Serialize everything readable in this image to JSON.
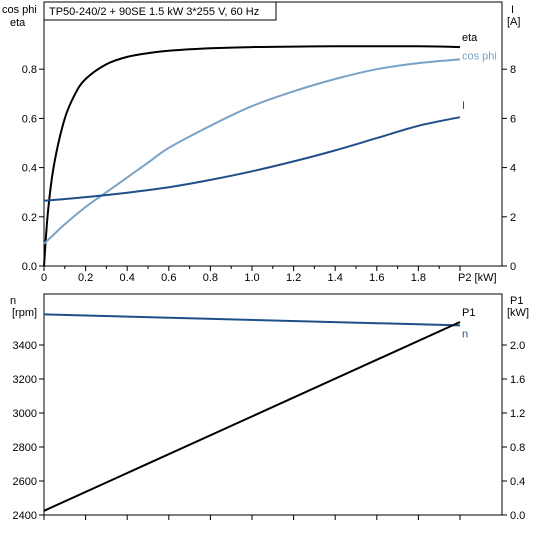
{
  "title": "TP50-240/2 + 90SE   1.5 kW   3*255 V, 60 Hz",
  "colors": {
    "eta": "#000000",
    "cos_phi": "#7aa2c6",
    "current": "#1f4f8a",
    "n": "#1f4f8a",
    "p1": "#000000",
    "axis": "#000000"
  },
  "chart_data": [
    {
      "type": "line",
      "x_axis": {
        "label": "P2 [kW]",
        "range": [
          0,
          2.0
        ],
        "ticks": [
          "0",
          "0.2",
          "0.4",
          "0.6",
          "0.8",
          "1.0",
          "1.2",
          "1.4",
          "1.6",
          "1.8",
          "P2 [kW]"
        ]
      },
      "y_left": {
        "label_line1": "cos phi",
        "label_line2": "eta",
        "range": [
          0,
          1.0
        ],
        "ticks": [
          "0.0",
          "0.2",
          "0.4",
          "0.6",
          "0.8"
        ]
      },
      "y_right": {
        "label_line1": "I",
        "label_line2": "[A]",
        "range": [
          0,
          10
        ],
        "ticks": [
          "0",
          "2",
          "4",
          "6",
          "8"
        ]
      },
      "series": [
        {
          "name": "eta",
          "axis": "left",
          "x": [
            0.0,
            0.02,
            0.05,
            0.1,
            0.15,
            0.2,
            0.3,
            0.4,
            0.5,
            0.6,
            0.8,
            1.0,
            1.2,
            1.4,
            1.6,
            1.8,
            2.0
          ],
          "y": [
            0.0,
            0.23,
            0.42,
            0.6,
            0.7,
            0.76,
            0.82,
            0.85,
            0.865,
            0.875,
            0.885,
            0.89,
            0.892,
            0.893,
            0.893,
            0.893,
            0.89
          ]
        },
        {
          "name": "cos phi",
          "axis": "left",
          "x": [
            0.0,
            0.05,
            0.1,
            0.2,
            0.3,
            0.4,
            0.5,
            0.6,
            0.8,
            1.0,
            1.2,
            1.4,
            1.6,
            1.8,
            2.0
          ],
          "y": [
            0.09,
            0.13,
            0.17,
            0.24,
            0.3,
            0.36,
            0.42,
            0.48,
            0.57,
            0.65,
            0.71,
            0.76,
            0.8,
            0.825,
            0.84
          ]
        },
        {
          "name": "I",
          "axis": "right",
          "x": [
            0.0,
            0.2,
            0.4,
            0.6,
            0.8,
            1.0,
            1.2,
            1.4,
            1.6,
            1.8,
            2.0
          ],
          "y": [
            2.65,
            2.8,
            2.98,
            3.2,
            3.5,
            3.85,
            4.25,
            4.7,
            5.2,
            5.7,
            6.05
          ]
        }
      ]
    },
    {
      "type": "line",
      "x_axis": {
        "range": [
          0,
          2.0
        ]
      },
      "y_left": {
        "label_line1": "n",
        "label_line2": "[rpm]",
        "range": [
          2400,
          3600
        ],
        "ticks": [
          "2400",
          "2600",
          "2800",
          "3000",
          "3200",
          "3400"
        ]
      },
      "y_right": {
        "label_line1": "P1",
        "label_line2": "[kW]",
        "range": [
          0,
          2.4
        ],
        "ticks": [
          "0.0",
          "0.4",
          "0.8",
          "1.2",
          "1.6",
          "2.0"
        ]
      },
      "series": [
        {
          "name": "n",
          "axis": "left",
          "x": [
            0.0,
            2.0
          ],
          "y": [
            3580,
            3515
          ]
        },
        {
          "name": "P1",
          "axis": "right",
          "x": [
            0.0,
            2.0
          ],
          "y": [
            0.05,
            2.27
          ]
        }
      ]
    }
  ]
}
